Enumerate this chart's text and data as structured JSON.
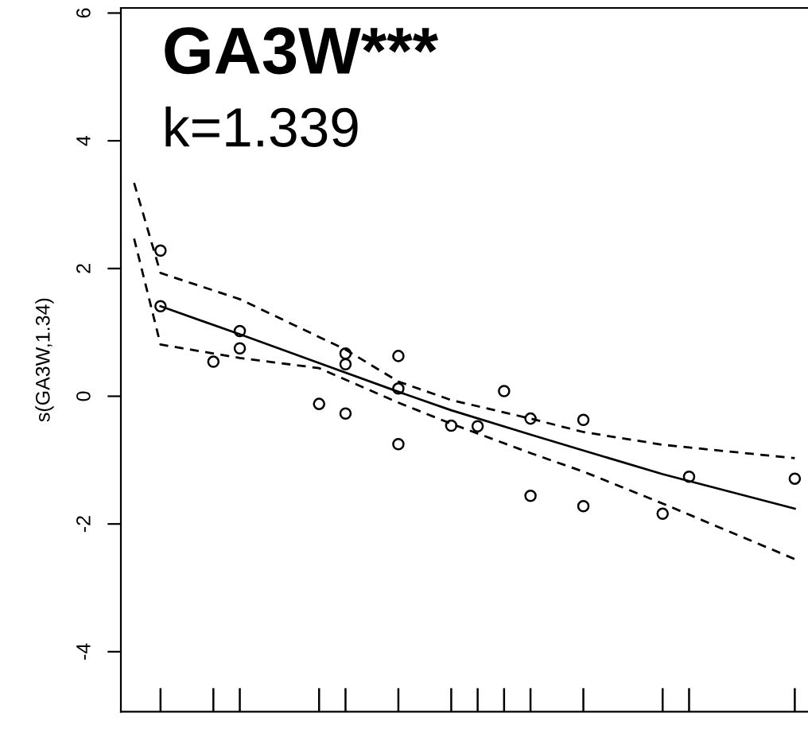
{
  "chart_data": {
    "type": "line",
    "title": "GA3W***",
    "annotations": [
      "k=1.339"
    ],
    "ylabel": "s(GA3W,1.34)",
    "categories": [
      null,
      null,
      null,
      null,
      null,
      null,
      null,
      null,
      null,
      null,
      null,
      null,
      null,
      null,
      null,
      null,
      null,
      null,
      null,
      null,
      null,
      null,
      null,
      null,
      null,
      null
    ],
    "ylim": [
      -4.94,
      6.08
    ],
    "yticks": [
      -4,
      -2,
      0,
      2,
      4,
      6
    ],
    "grid": false,
    "legend": false,
    "series": [
      {
        "type": "line",
        "line_style": "solid",
        "color": "#000000",
        "values": [
          null,
          1.41,
          null,
          null,
          0.97,
          null,
          null,
          0.52,
          null,
          null,
          0.07,
          null,
          -0.22,
          null,
          null,
          -0.6,
          null,
          -0.85,
          null,
          null,
          -1.22,
          null,
          null,
          null,
          null,
          -1.76
        ]
      },
      {
        "type": "line",
        "line_style": "dashed",
        "color": "#000000",
        "values": [
          3.34,
          1.93,
          null,
          null,
          1.52,
          null,
          null,
          null,
          0.73,
          null,
          0.23,
          null,
          -0.06,
          null,
          null,
          -0.35,
          null,
          -0.56,
          null,
          null,
          -0.76,
          null,
          null,
          null,
          null,
          -0.97
        ]
      },
      {
        "type": "line",
        "line_style": "dashed",
        "color": "#000000",
        "values": [
          2.47,
          0.81,
          null,
          null,
          0.6,
          null,
          null,
          0.44,
          null,
          null,
          -0.1,
          null,
          -0.43,
          null,
          null,
          -0.89,
          null,
          -1.18,
          null,
          null,
          -1.68,
          null,
          null,
          null,
          null,
          -2.55
        ]
      },
      {
        "type": "scatter",
        "marker": "circle",
        "color": "#000000",
        "values": [
          null,
          2.28,
          null,
          0.54,
          1.02,
          null,
          null,
          -0.12,
          0.67,
          null,
          0.63,
          null,
          -0.46,
          -0.47,
          0.08,
          -0.35,
          null,
          -0.37,
          null,
          null,
          -1.84,
          -1.26,
          null,
          null,
          null,
          -1.29
        ]
      },
      {
        "type": "scatter",
        "marker": "circle",
        "color": "#000000",
        "values": [
          null,
          1.41,
          null,
          null,
          0.75,
          null,
          null,
          null,
          0.5,
          null,
          0.12,
          null,
          null,
          null,
          null,
          -1.56,
          null,
          -1.72,
          null,
          null,
          null,
          null,
          null,
          null,
          null,
          null
        ]
      },
      {
        "type": "scatter",
        "marker": "circle",
        "color": "#000000",
        "values": [
          null,
          null,
          null,
          null,
          null,
          null,
          null,
          null,
          -0.27,
          null,
          -0.75,
          null,
          null,
          null,
          null,
          null,
          null,
          null,
          null,
          null,
          null,
          null,
          null,
          null,
          null,
          null
        ]
      }
    ]
  }
}
